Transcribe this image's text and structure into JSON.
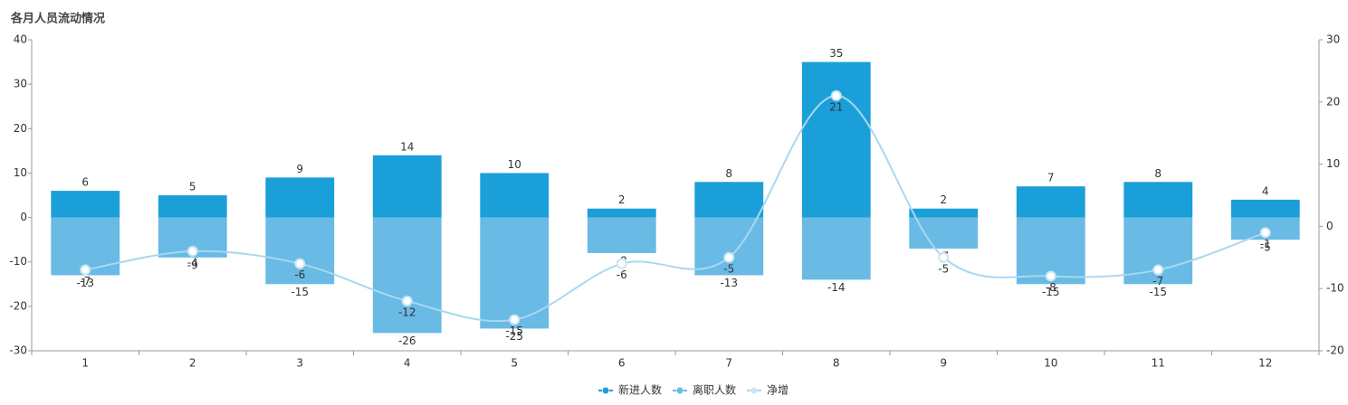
{
  "chart_data": {
    "type": "bar",
    "title": "各月人员流动情况",
    "categories": [
      "1",
      "2",
      "3",
      "4",
      "5",
      "6",
      "7",
      "8",
      "9",
      "10",
      "11",
      "12"
    ],
    "series": [
      {
        "name": "新进人数",
        "type": "bar",
        "color": "#1b9fd9",
        "values": [
          6,
          5,
          9,
          14,
          10,
          2,
          8,
          35,
          2,
          7,
          8,
          4
        ]
      },
      {
        "name": "离职人数",
        "type": "bar",
        "color": "#69bae5",
        "values": [
          -13,
          -9,
          -15,
          -26,
          -25,
          -8,
          -13,
          -14,
          -7,
          -15,
          -15,
          -5
        ]
      },
      {
        "name": "净增",
        "type": "line",
        "axis": "y2",
        "color": "#a9d8f0",
        "values": [
          -7,
          -4,
          -6,
          -12,
          -15,
          -6,
          -5,
          21,
          -5,
          -8,
          -7,
          -1
        ]
      }
    ],
    "ylim": [
      -30,
      40
    ],
    "yticks": [
      -30,
      -20,
      -10,
      0,
      10,
      20,
      30,
      40
    ],
    "y2lim": [
      -20,
      30
    ],
    "y2ticks": [
      -20,
      -10,
      0,
      10,
      20,
      30
    ],
    "legend": "bottom"
  }
}
